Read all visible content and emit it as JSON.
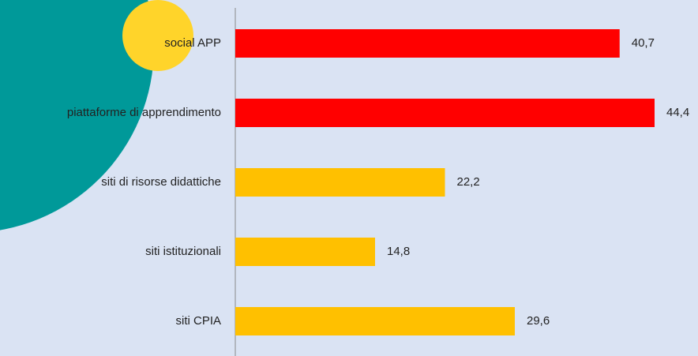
{
  "chart_data": {
    "type": "bar",
    "orientation": "horizontal",
    "categories": [
      "social APP",
      "piattaforme di apprendimento",
      "siti di risorse didattiche",
      "siti istituzionali",
      "siti CPIA"
    ],
    "values": [
      40.7,
      44.4,
      22.2,
      14.8,
      29.6
    ],
    "value_labels": [
      "40,7",
      "44,4",
      "22,2",
      "14,8",
      "29,6"
    ],
    "colors": [
      "#ff0000",
      "#ff0000",
      "#ffc000",
      "#ffc000",
      "#ffc000"
    ],
    "xlim": [
      0,
      49
    ]
  }
}
